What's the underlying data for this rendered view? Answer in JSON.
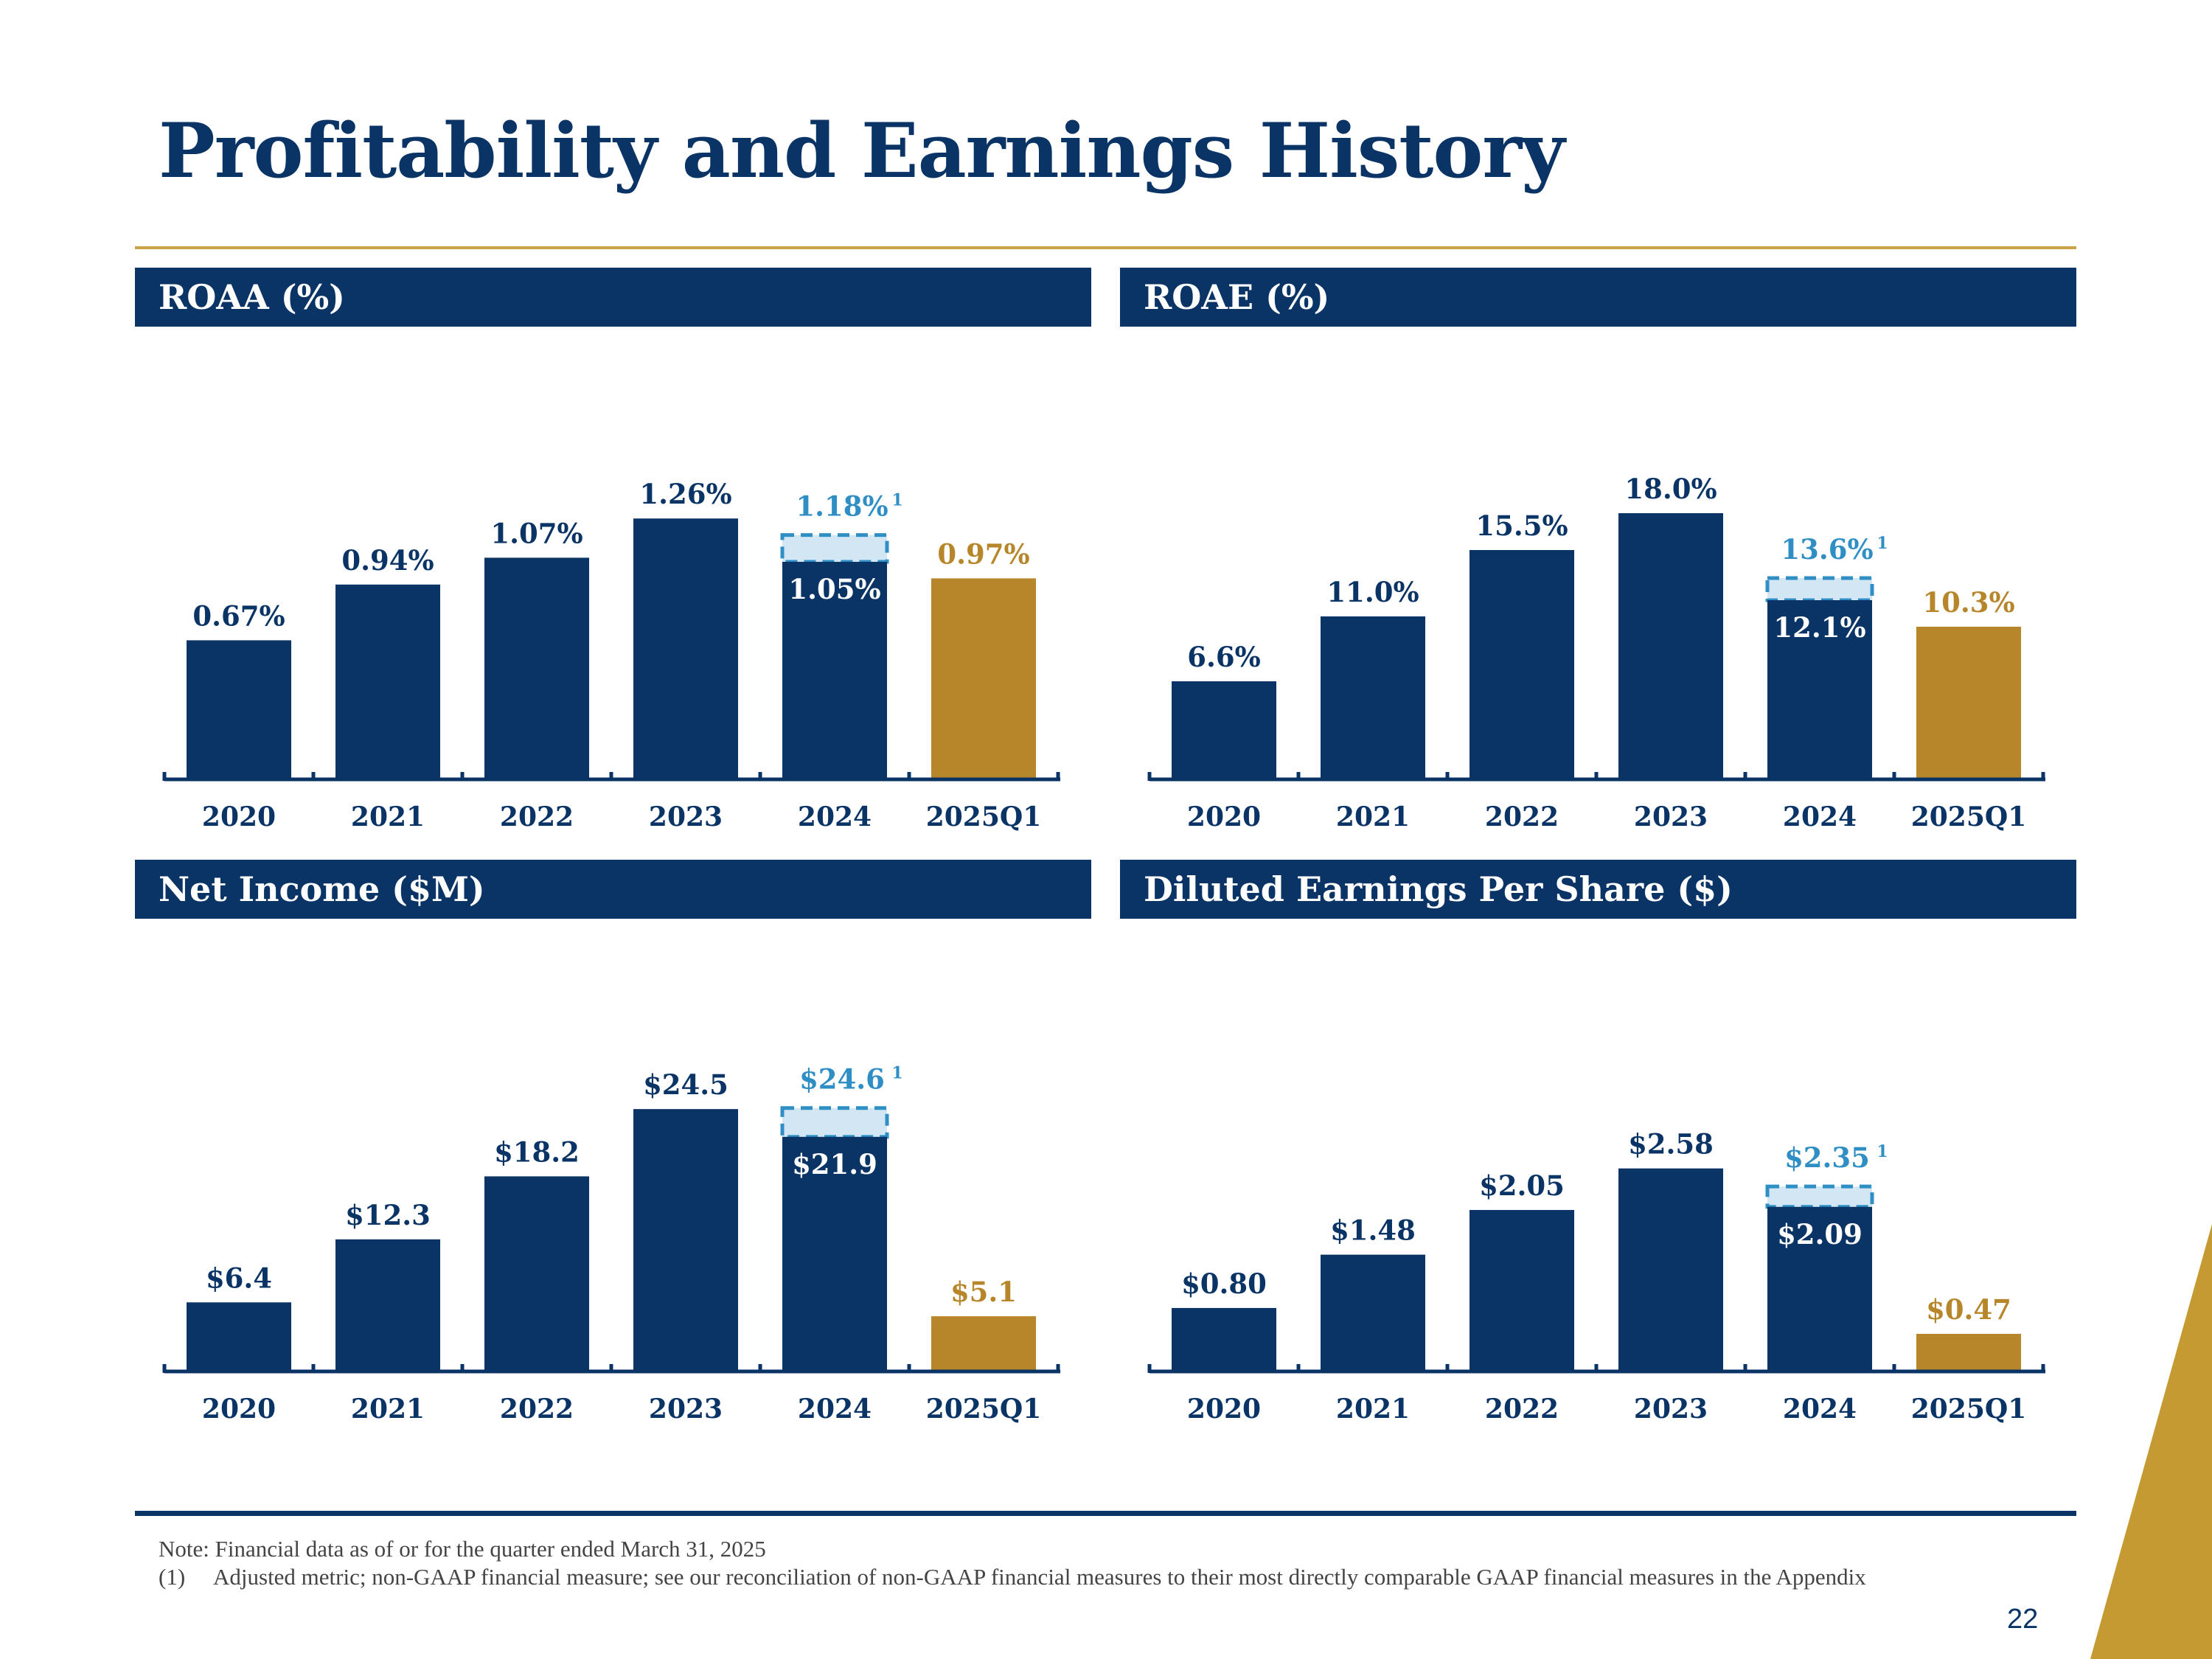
{
  "title": "Profitability and Earnings History",
  "colors": {
    "navy": "#0b3466",
    "gold": "#b8862a",
    "adjusted_label": "#2f8fc5",
    "adjusted_fill": "#d3e6f4",
    "adjusted_border": "#2f8fc5"
  },
  "chart_data": [
    {
      "type": "bar",
      "title": "ROAA (%)",
      "categories": [
        "2020",
        "2021",
        "2022",
        "2023",
        "2024",
        "2025Q1"
      ],
      "values": [
        0.67,
        0.94,
        1.07,
        1.26,
        1.05,
        0.97
      ],
      "labels": [
        "0.67%",
        "0.94%",
        "1.07%",
        "1.26%",
        "1.05%",
        "0.97%"
      ],
      "adjusted": {
        "category": "2024",
        "value": 1.18,
        "label": "1.18%",
        "footnote": "1"
      },
      "highlight_category": "2025Q1",
      "ylim": [
        0,
        1.5
      ],
      "xlabel": "",
      "ylabel": ""
    },
    {
      "type": "bar",
      "title": "ROAE (%)",
      "categories": [
        "2020",
        "2021",
        "2022",
        "2023",
        "2024",
        "2025Q1"
      ],
      "values": [
        6.6,
        11.0,
        15.5,
        18.0,
        12.1,
        10.3
      ],
      "labels": [
        "6.6%",
        "11.0%",
        "15.5%",
        "18.0%",
        "12.1%",
        "10.3%"
      ],
      "adjusted": {
        "category": "2024",
        "value": 13.6,
        "label": "13.6%",
        "footnote": "1"
      },
      "highlight_category": "2025Q1",
      "ylim": [
        0,
        21
      ],
      "xlabel": "",
      "ylabel": ""
    },
    {
      "type": "bar",
      "title": "Net Income ($M)",
      "categories": [
        "2020",
        "2021",
        "2022",
        "2023",
        "2024",
        "2025Q1"
      ],
      "values": [
        6.4,
        12.3,
        18.2,
        24.5,
        21.9,
        5.1
      ],
      "labels": [
        "$6.4",
        "$12.3",
        "$18.2",
        "$24.5",
        "$21.9",
        "$5.1"
      ],
      "adjusted": {
        "category": "2024",
        "value": 24.6,
        "label": "$24.6",
        "footnote": "1"
      },
      "highlight_category": "2025Q1",
      "ylim": [
        0,
        29
      ],
      "xlabel": "",
      "ylabel": ""
    },
    {
      "type": "bar",
      "title": "Diluted Earnings Per Share ($)",
      "categories": [
        "2020",
        "2021",
        "2022",
        "2023",
        "2024",
        "2025Q1"
      ],
      "values": [
        0.8,
        1.48,
        2.05,
        2.58,
        2.09,
        0.47
      ],
      "labels": [
        "$0.80",
        "$1.48",
        "$2.05",
        "$2.58",
        "$2.09",
        "$0.47"
      ],
      "adjusted": {
        "category": "2024",
        "value": 2.35,
        "label": "$2.35",
        "footnote": "1"
      },
      "highlight_category": "2025Q1",
      "ylim": [
        0,
        3.95
      ],
      "xlabel": "",
      "ylabel": ""
    }
  ],
  "footnotes": {
    "note": "Note:  Financial data as of or for the quarter ended March 31, 2025",
    "item_number": "(1)",
    "item_text": "Adjusted metric; non-GAAP financial measure; see our reconciliation of non-GAAP financial measures to their most directly comparable GAAP financial measures in the Appendix"
  },
  "page_number": "22"
}
